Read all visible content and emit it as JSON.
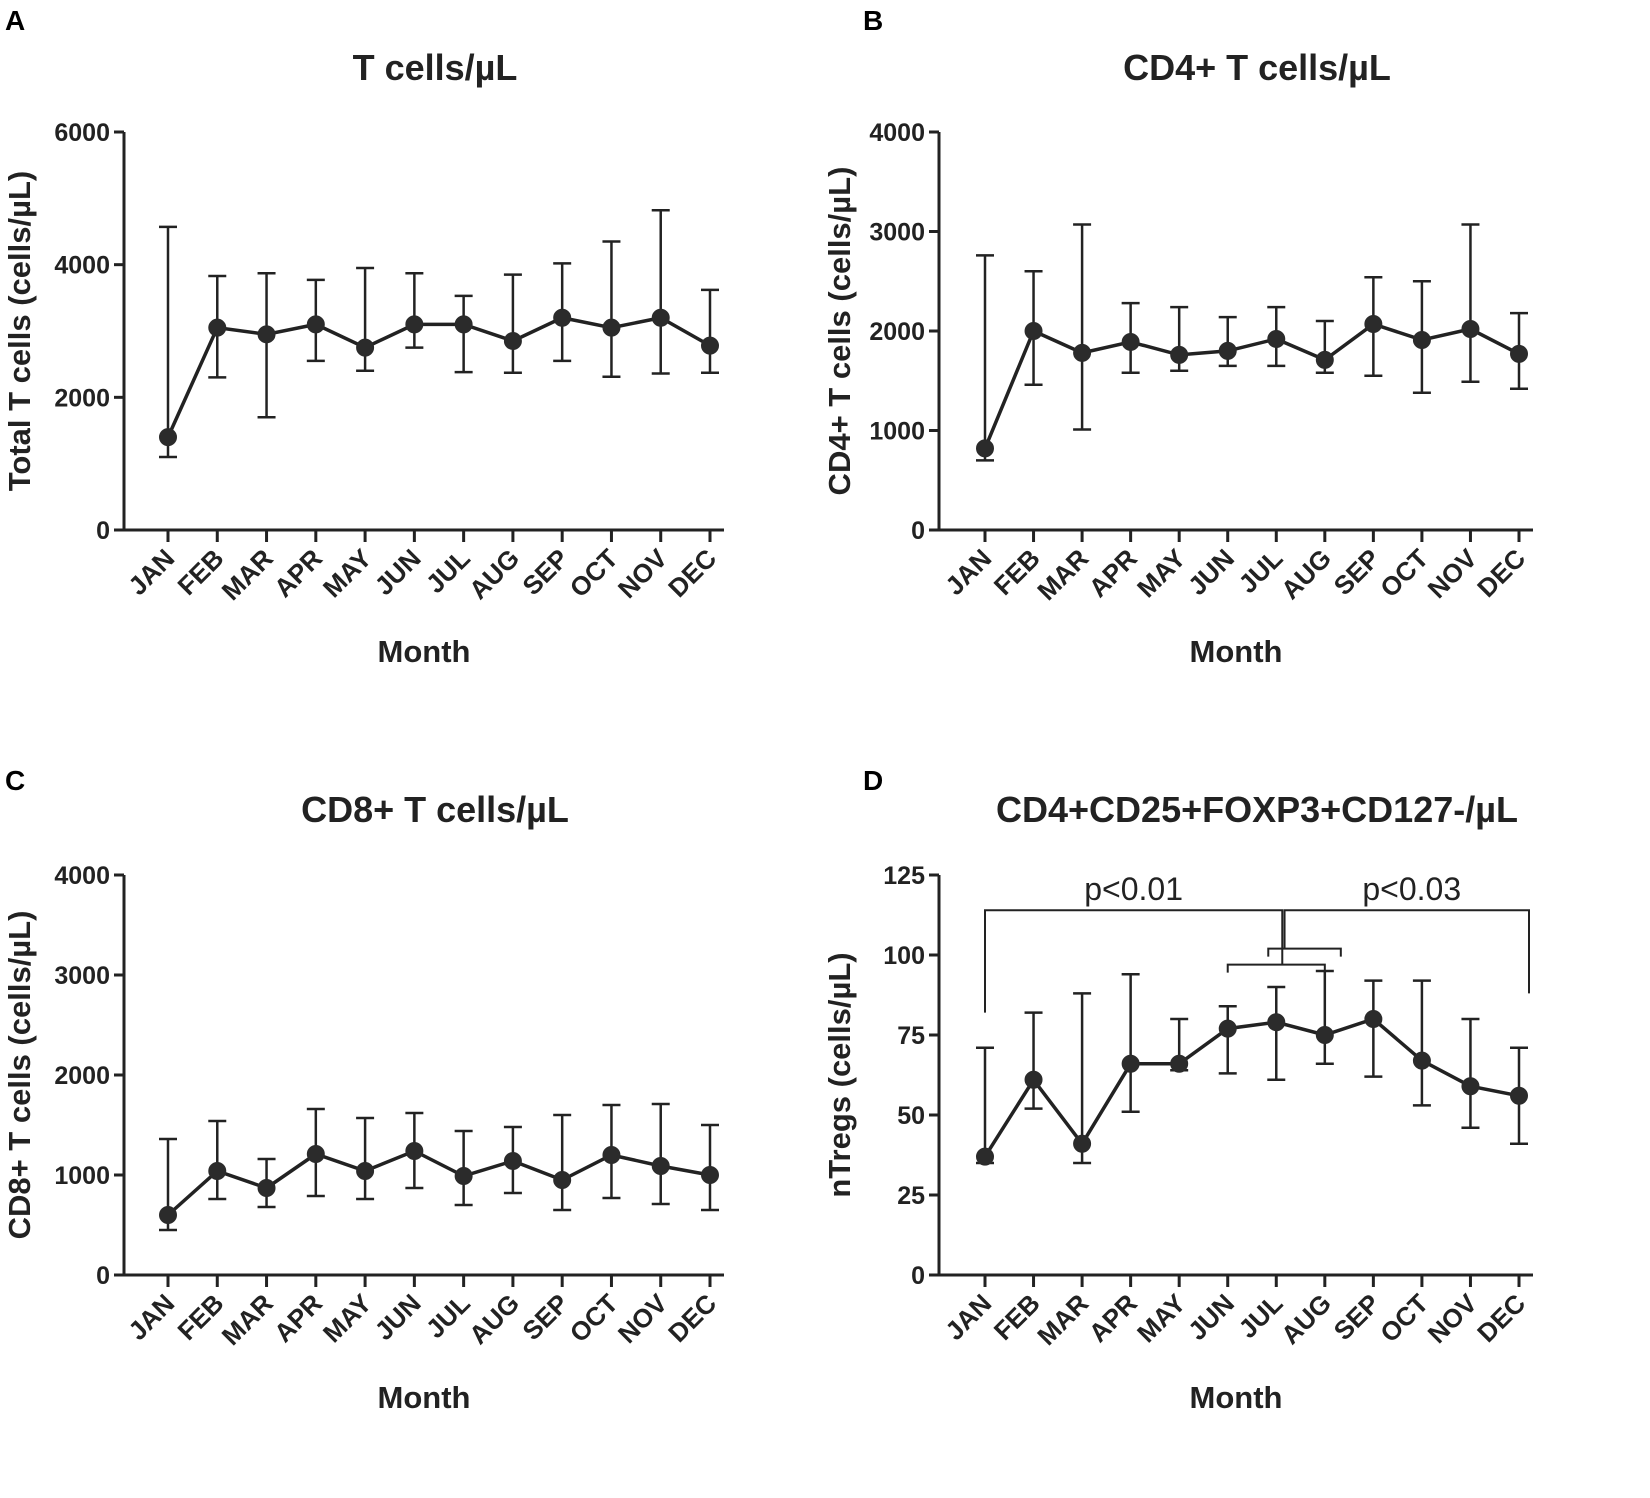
{
  "colors": {
    "series": "#2b2b2b",
    "axis": "#222222",
    "background": "#ffffff"
  },
  "chart_data": [
    {
      "panel": "A",
      "type": "line",
      "title": "T cells/µL",
      "xlabel": "Month",
      "ylabel": "Total T cells (cells/µL)",
      "ylim": [
        0,
        6000
      ],
      "yticks": [
        0,
        2000,
        4000,
        6000
      ],
      "ytick_labels": [
        "0",
        "2000",
        "4000",
        "6000"
      ],
      "categories": [
        "JAN",
        "FEB",
        "MAR",
        "APR",
        "MAY",
        "JUN",
        "JUL",
        "AUG",
        "SEP",
        "OCT",
        "NOV",
        "DEC"
      ],
      "values": [
        1400,
        3050,
        2950,
        3100,
        2750,
        3100,
        3100,
        2850,
        3200,
        3050,
        3200,
        2780
      ],
      "err_low": [
        1100,
        2300,
        1700,
        2550,
        2400,
        2750,
        2380,
        2370,
        2550,
        2310,
        2360,
        2370
      ],
      "err_high": [
        4570,
        3830,
        3870,
        3770,
        3950,
        3870,
        3530,
        3850,
        4020,
        4350,
        4820,
        3620
      ],
      "grid": false
    },
    {
      "panel": "B",
      "type": "line",
      "title": "CD4+ T cells/µL",
      "xlabel": "Month",
      "ylabel": "CD4+ T cells (cells/µL)",
      "ylim": [
        0,
        4000
      ],
      "yticks": [
        0,
        1000,
        2000,
        3000,
        4000
      ],
      "ytick_labels": [
        "0",
        "1000",
        "2000",
        "3000",
        "4000"
      ],
      "categories": [
        "JAN",
        "FEB",
        "MAR",
        "APR",
        "MAY",
        "JUN",
        "JUL",
        "AUG",
        "SEP",
        "OCT",
        "NOV",
        "DEC"
      ],
      "values": [
        820,
        2000,
        1780,
        1890,
        1760,
        1800,
        1920,
        1710,
        2070,
        1910,
        2020,
        1770
      ],
      "err_low": [
        700,
        1460,
        1010,
        1580,
        1600,
        1650,
        1650,
        1580,
        1550,
        1380,
        1490,
        1420
      ],
      "err_high": [
        2760,
        2600,
        3070,
        2280,
        2240,
        2140,
        2240,
        2100,
        2540,
        2500,
        3070,
        2180
      ],
      "grid": false
    },
    {
      "panel": "C",
      "type": "line",
      "title": "CD8+ T cells/µL",
      "xlabel": "Month",
      "ylabel": "CD8+ T cells (cells/µL)",
      "ylim": [
        0,
        4000
      ],
      "yticks": [
        0,
        1000,
        2000,
        3000,
        4000
      ],
      "ytick_labels": [
        "0",
        "1000",
        "2000",
        "3000",
        "4000"
      ],
      "categories": [
        "JAN",
        "FEB",
        "MAR",
        "APR",
        "MAY",
        "JUN",
        "JUL",
        "AUG",
        "SEP",
        "OCT",
        "NOV",
        "DEC"
      ],
      "values": [
        600,
        1040,
        870,
        1210,
        1040,
        1240,
        990,
        1140,
        950,
        1200,
        1090,
        1000
      ],
      "err_low": [
        450,
        760,
        680,
        790,
        760,
        870,
        700,
        820,
        650,
        770,
        710,
        650
      ],
      "err_high": [
        1360,
        1540,
        1160,
        1660,
        1570,
        1620,
        1440,
        1480,
        1600,
        1700,
        1710,
        1500
      ],
      "grid": false
    },
    {
      "panel": "D",
      "type": "line",
      "title": "CD4+CD25+FOXP3+CD127-/µL",
      "xlabel": "Month",
      "ylabel": "nTregs (cells/µL)",
      "ylim": [
        0,
        125
      ],
      "yticks": [
        0,
        25,
        50,
        75,
        100,
        125
      ],
      "ytick_labels": [
        "0",
        "25",
        "50",
        "75",
        "100",
        "125"
      ],
      "categories": [
        "JAN",
        "FEB",
        "MAR",
        "APR",
        "MAY",
        "JUN",
        "JUL",
        "AUG",
        "SEP",
        "OCT",
        "NOV",
        "DEC"
      ],
      "values": [
        37,
        61,
        41,
        66,
        66,
        77,
        79,
        75,
        80,
        67,
        59,
        56
      ],
      "err_low": [
        35,
        52,
        35,
        51,
        64,
        63,
        61,
        66,
        62,
        53,
        46,
        41
      ],
      "err_high": [
        71,
        82,
        88,
        94,
        80,
        84,
        90,
        95,
        92,
        92,
        80,
        71
      ],
      "grid": false,
      "annotations": [
        {
          "text": "p<0.01",
          "from": "JAN",
          "to_group": [
            "JUN",
            "AUG"
          ],
          "bracket_level": 114,
          "group_level": 97
        },
        {
          "text": "p<0.03",
          "from_group": [
            "JUL",
            "AUG"
          ],
          "to": "DEC",
          "bracket_level": 114,
          "group_level": 102
        }
      ]
    }
  ]
}
